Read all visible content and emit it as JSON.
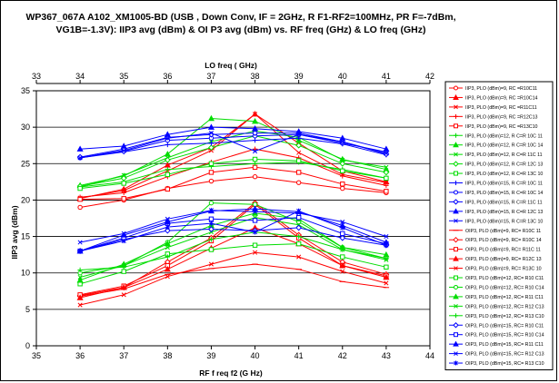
{
  "chart_data": {
    "type": "line",
    "title_line1": "WP367_067A A102_XM1005-BD (USB , Down Conv, IF = 2GHz, R F1-RF2=100MHz, PR F=-7dBm,",
    "title_line2": "VG1B=-1.3V): IIP3 avg (dBm) & OI P3 avg (dBm)  vs.  RF freq (GHz) & LO   freq (GHz)",
    "xlabel": "RF f req f2 (G Hz)",
    "ylabel": "IIP3 avg (dBm)",
    "x2label": "LO freq ( GHz)",
    "xlim": [
      35,
      44
    ],
    "x2lim": [
      33,
      42
    ],
    "ylim": [
      0,
      35
    ],
    "x_ticks": [
      "35",
      "36",
      "37",
      "38",
      "39",
      "40",
      "41",
      "42",
      "43",
      "44"
    ],
    "x2_ticks": [
      "33",
      "34",
      "35",
      "36",
      "37",
      "38",
      "39",
      "40",
      "41",
      "42"
    ],
    "y_ticks": [
      "0",
      "5",
      "10",
      "15",
      "20",
      "25",
      "30",
      "35"
    ],
    "grid": "horizontal",
    "legend_position": "right",
    "x": [
      36,
      37,
      38,
      39,
      40,
      41,
      42,
      43
    ],
    "series": [
      {
        "name": "IIP3, PLO  (dBm)=9, RC =R10C11",
        "color": "#ff0000",
        "marker": "circle",
        "values": [
          19.0,
          20.0,
          21.6,
          22.6,
          23.2,
          22.4,
          21.6,
          21.0
        ]
      },
      {
        "name": "IIP3, PLO  (dBm)=9, RC =R10C14",
        "color": "#ff0000",
        "marker": "triangle",
        "values": [
          20.2,
          21.5,
          24.8,
          27.2,
          31.8,
          27.8,
          24.0,
          22.5
        ]
      },
      {
        "name": "IIP3, PLO  (dBm)=9, RC =R11C11",
        "color": "#ff0000",
        "marker": "x",
        "values": [
          20.3,
          21.3,
          24.0,
          26.8,
          31.8,
          26.5,
          23.5,
          22.4
        ]
      },
      {
        "name": "IIP3, PLO  (dBm)=9, RC =R12C13",
        "color": "#ff0000",
        "marker": "cross",
        "values": [
          20.4,
          21.0,
          23.2,
          25.2,
          27.0,
          25.8,
          23.3,
          22.0
        ]
      },
      {
        "name": "IIP3, PLO  (dBm)=9, RC =R13C10",
        "color": "#ff0000",
        "marker": "square",
        "values": [
          20.1,
          20.2,
          21.5,
          23.8,
          24.5,
          23.8,
          22.2,
          21.2
        ]
      },
      {
        "name": "IIP3, PLO  (dBm)=12, R C=R 10C 11",
        "color": "#00dd00",
        "marker": "cross",
        "values": [
          21.8,
          22.5,
          24.2,
          24.6,
          25.0,
          25.2,
          24.2,
          23.0
        ]
      },
      {
        "name": "IIP3, PLO  (dBm)=12, R C=R 10C 14",
        "color": "#00dd00",
        "marker": "triangle",
        "values": [
          22.0,
          23.3,
          26.3,
          31.2,
          30.8,
          28.2,
          25.6,
          24.2
        ]
      },
      {
        "name": "IIP3, PLO  (dBm)=12, R C=R 11C 11",
        "color": "#00dd00",
        "marker": "x",
        "values": [
          21.8,
          23.4,
          25.8,
          28.0,
          29.5,
          28.6,
          25.5,
          24.5
        ]
      },
      {
        "name": "IIP3, PLO  (dBm)=12, R C=R 12C 13",
        "color": "#00dd00",
        "marker": "diamond",
        "values": [
          21.9,
          23.0,
          25.5,
          27.2,
          28.8,
          27.5,
          25.0,
          23.8
        ]
      },
      {
        "name": "IIP3, PLO  (dBm)=12, R C=R 13C 10",
        "color": "#00dd00",
        "marker": "square",
        "values": [
          21.6,
          22.3,
          23.5,
          25.0,
          25.6,
          25.4,
          24.0,
          23.0
        ]
      },
      {
        "name": "IIP3, PLO  (dBm)=15, R C=R 10C 11",
        "color": "#0000ff",
        "marker": "cross",
        "values": [
          25.8,
          26.6,
          27.6,
          27.8,
          28.2,
          28.5,
          27.7,
          26.2
        ]
      },
      {
        "name": "IIP3, PLO  (dBm)=15, R C=R 10C 14",
        "color": "#0000ff",
        "marker": "circle",
        "values": [
          25.8,
          26.7,
          28.2,
          28.5,
          28.8,
          29.0,
          27.8,
          26.6
        ]
      },
      {
        "name": "IIP3, PLO  (dBm)=15, R C=R 11C 11",
        "color": "#0000ff",
        "marker": "diamond",
        "values": [
          25.9,
          27.0,
          28.6,
          29.0,
          29.2,
          29.2,
          28.0,
          26.3
        ]
      },
      {
        "name": "IIP3, PLO  (dBm)=15, R C=R 12C 13",
        "color": "#0000ff",
        "marker": "triangle",
        "values": [
          27.0,
          27.4,
          29.0,
          30.0,
          29.8,
          29.4,
          28.5,
          27.0
        ]
      },
      {
        "name": "IIP3, PLO  (dBm)=15, R C=R 13C 10",
        "color": "#0000ff",
        "marker": "x",
        "values": [
          25.8,
          26.8,
          28.5,
          29.2,
          26.7,
          29.0,
          28.0,
          26.4
        ]
      },
      {
        "name": "OIP3, PLO  (dBm)=9, RC= R10C 11",
        "color": "#ff0000",
        "marker": "dash",
        "values": [
          6.8,
          7.8,
          9.8,
          10.6,
          11.2,
          10.5,
          8.8,
          8.0
        ]
      },
      {
        "name": "OIP3, PLO  (dBm)=9, RC= R10C 14",
        "color": "#ff0000",
        "marker": "diamond",
        "values": [
          6.9,
          8.0,
          11.5,
          14.8,
          19.6,
          15.2,
          11.5,
          9.8
        ]
      },
      {
        "name": "OIP3, PLO  (dBm)=9, RC= R11C 11",
        "color": "#ff0000",
        "marker": "square",
        "values": [
          7.0,
          8.2,
          11.0,
          14.4,
          19.4,
          14.8,
          11.0,
          9.6
        ]
      },
      {
        "name": "OIP3, PLO  (dBm)=9, RC= R12C 13",
        "color": "#ff0000",
        "marker": "triangle",
        "values": [
          6.6,
          8.0,
          10.5,
          13.4,
          16.2,
          14.0,
          11.0,
          9.4
        ]
      },
      {
        "name": "OIP3, PLO  (dBm)=9, RC= R13C 10",
        "color": "#ff0000",
        "marker": "x",
        "values": [
          5.6,
          7.0,
          9.5,
          11.2,
          12.8,
          12.2,
          10.2,
          8.6
        ]
      },
      {
        "name": "OIP3, PLO  (dBm)=12, RC= R10 C11",
        "color": "#00dd00",
        "marker": "square",
        "values": [
          8.5,
          10.2,
          12.6,
          13.2,
          13.8,
          14.0,
          12.2,
          10.8
        ]
      },
      {
        "name": "OIP3, PLO  (dBm)=12, RC= R10 C14",
        "color": "#00dd00",
        "marker": "circle",
        "values": [
          10.0,
          11.0,
          14.2,
          19.6,
          19.4,
          17.0,
          13.5,
          12.0
        ]
      },
      {
        "name": "OIP3, PLO  (dBm)=12, RC= R11 C11",
        "color": "#00dd00",
        "marker": "triangle",
        "values": [
          9.0,
          11.2,
          14.0,
          16.5,
          18.2,
          17.4,
          13.5,
          12.5
        ]
      },
      {
        "name": "OIP3, PLO  (dBm)=12, RC= R12 C13",
        "color": "#00dd00",
        "marker": "x",
        "values": [
          9.4,
          11.0,
          13.5,
          15.6,
          17.6,
          16.6,
          13.2,
          11.8
        ]
      },
      {
        "name": "OIP3, PLO  (dBm)=12, RC= R13 C10",
        "color": "#00dd00",
        "marker": "cross",
        "values": [
          10.4,
          10.8,
          12.2,
          14.6,
          15.6,
          15.0,
          13.2,
          12.0
        ]
      },
      {
        "name": "OIP3, PLO  (dBm)=15, RC= R10 C11",
        "color": "#0000ff",
        "marker": "diamond",
        "values": [
          13.0,
          14.6,
          15.8,
          16.0,
          15.8,
          16.2,
          14.8,
          13.8
        ]
      },
      {
        "name": "OIP3, PLO  (dBm)=15, RC= R10 C14",
        "color": "#0000ff",
        "marker": "square",
        "values": [
          13.0,
          14.8,
          16.8,
          17.4,
          17.2,
          17.6,
          15.4,
          14.0
        ]
      },
      {
        "name": "OIP3, PLO  (dBm)=15, RC= R11 C11",
        "color": "#0000ff",
        "marker": "triangle",
        "values": [
          13.0,
          15.2,
          17.0,
          18.5,
          18.8,
          18.4,
          16.5,
          14.2
        ]
      },
      {
        "name": "OIP3, PLO  (dBm)=15, RC= R12 C13",
        "color": "#0000ff",
        "marker": "x",
        "values": [
          14.2,
          15.4,
          17.4,
          18.6,
          18.4,
          18.2,
          17.0,
          15.0
        ]
      },
      {
        "name": "OIP3, PLO  (dBm)=15, RC= R13 C10",
        "color": "#0000ff",
        "marker": "asterisk",
        "values": [
          13.0,
          14.4,
          16.3,
          16.8,
          15.6,
          18.5,
          16.2,
          13.8
        ]
      }
    ]
  }
}
